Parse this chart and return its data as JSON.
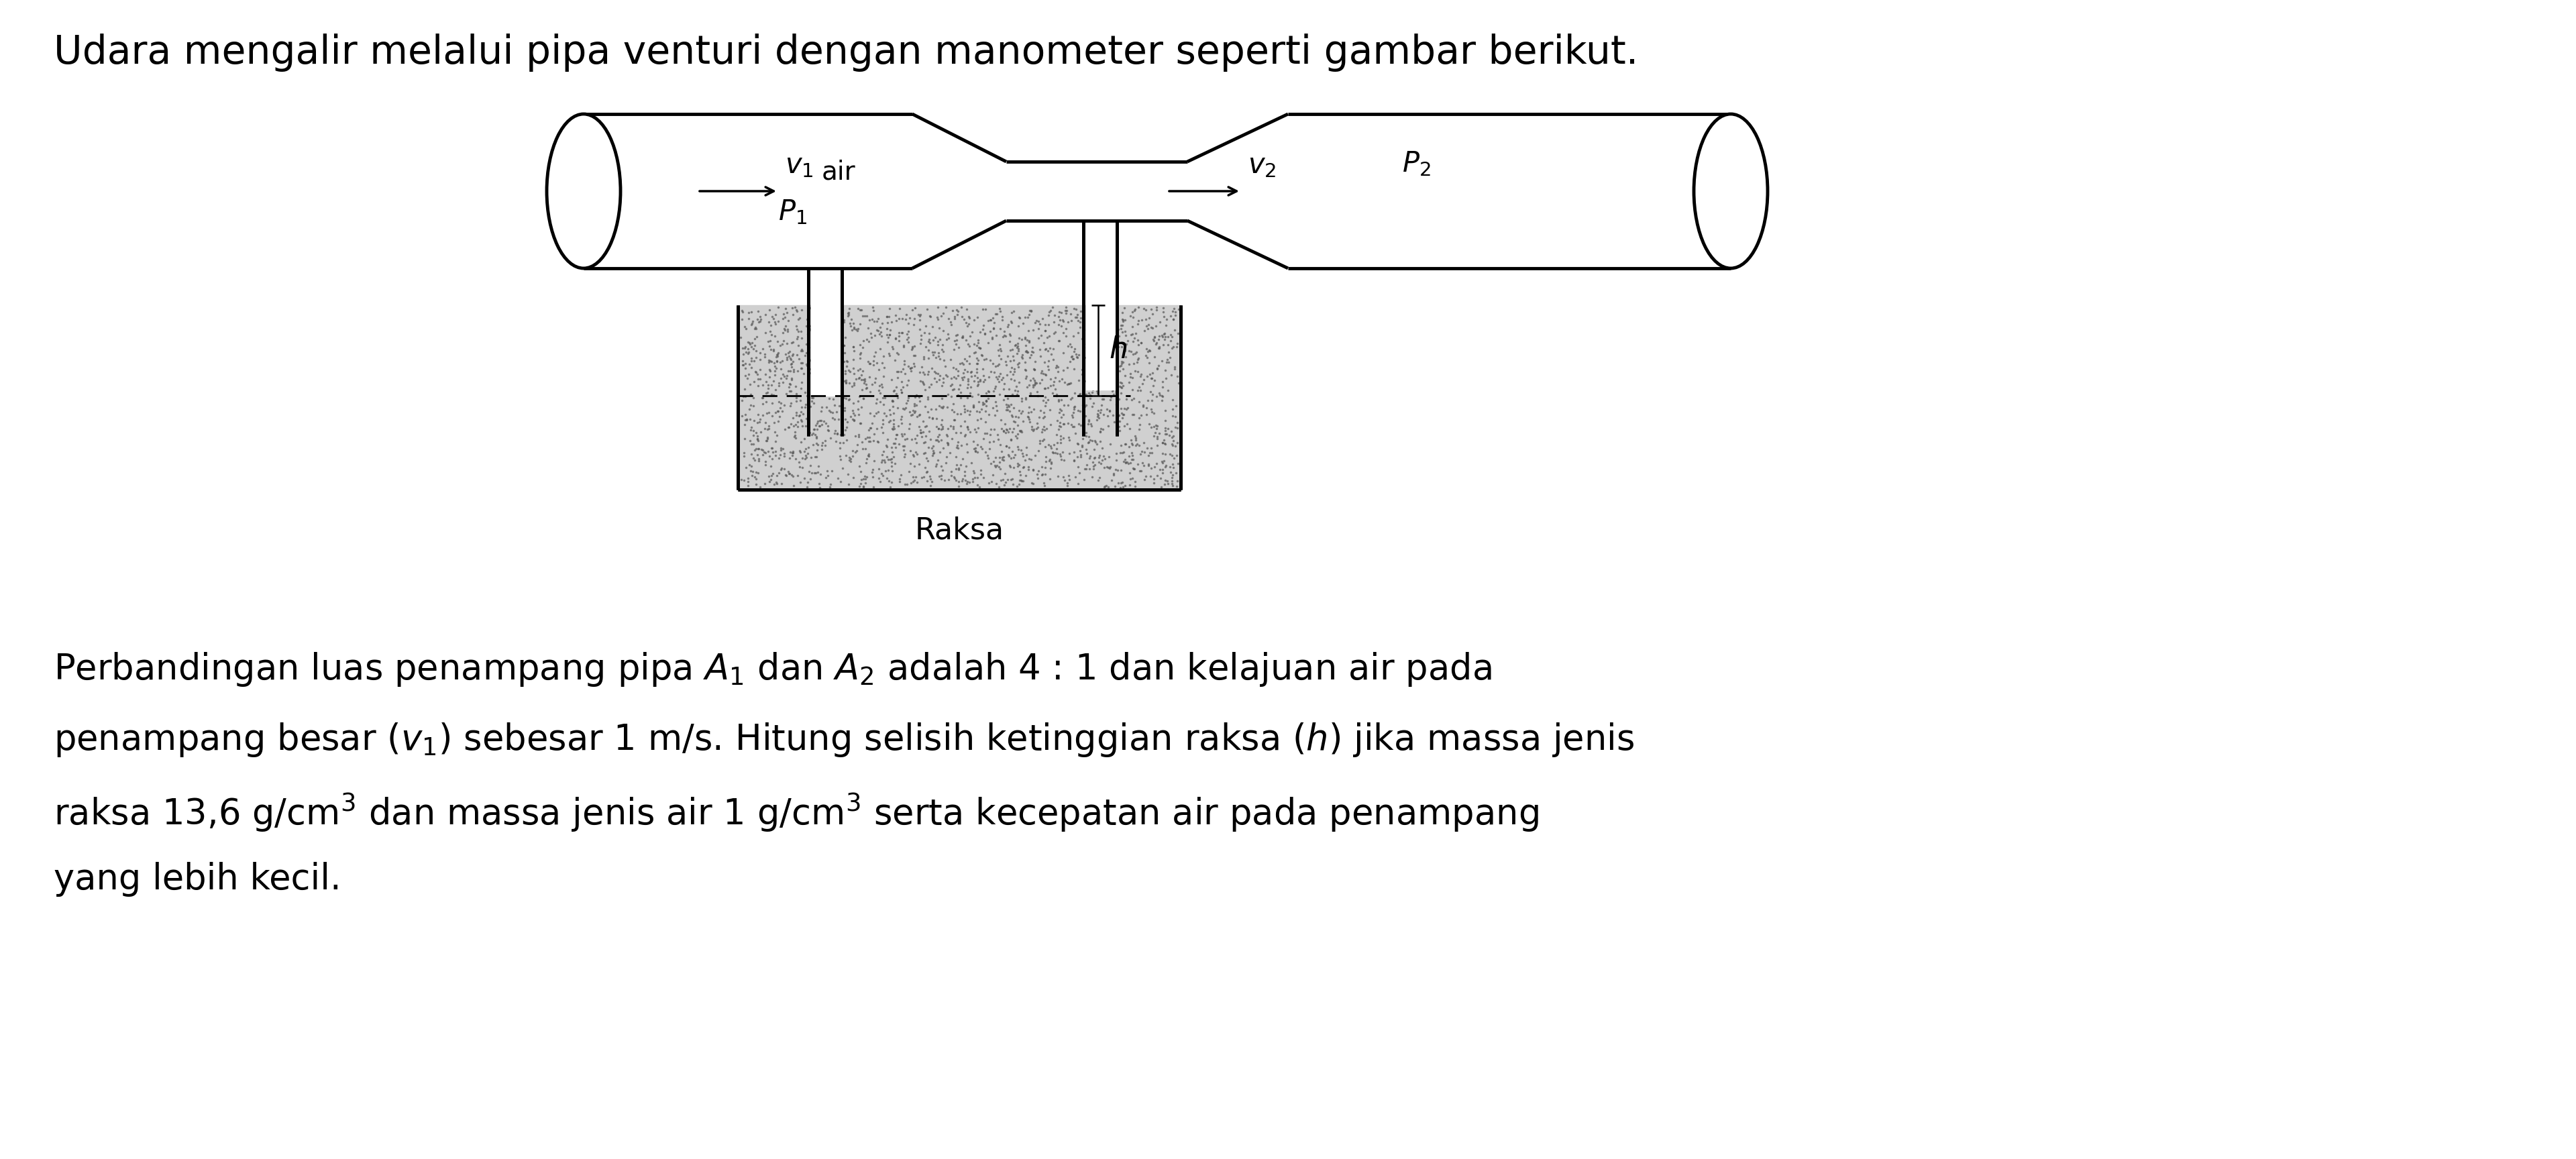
{
  "title_line": "Udara mengalir melalui pipa venturi dengan manometer seperti gambar berikut.",
  "para_line1": "Perbandingan luas penampang pipa $A_1$ dan $A_2$ adalah 4 : 1 dan kelajuan air pada",
  "para_line2": "penampang besar ($v_1$) sebesar 1 m/s. Hitung selisih ketinggian raksa ($h$) jika massa jenis",
  "para_line3": "raksa 13,6 g/cm$^3$ dan massa jenis air 1 g/cm$^3$ serta kecepatan air pada penampang",
  "para_line4": "yang lebih kecil.",
  "bg_color": "#ffffff",
  "text_color": "#000000",
  "line_color": "#000000",
  "mercury_fill": "#d0d0d0",
  "font_size_title": 42,
  "font_size_para": 38,
  "lw": 3.5
}
